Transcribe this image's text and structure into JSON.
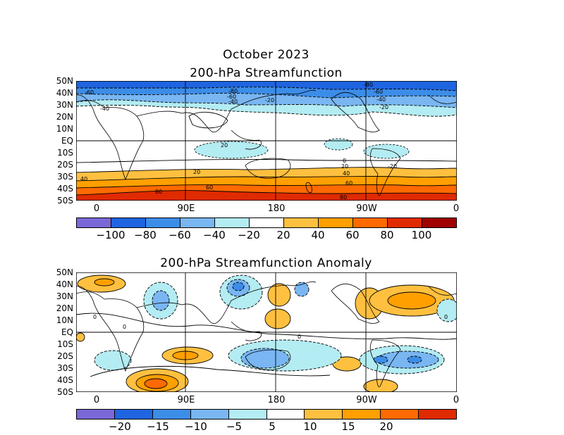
{
  "title": "October 2023",
  "panel1": {
    "title": "200-hPa Streamfunction",
    "lat_labels": [
      "50N",
      "40N",
      "30N",
      "20N",
      "10N",
      "EQ",
      "10S",
      "20S",
      "30S",
      "40S",
      "50S"
    ],
    "lon_labels": [
      "0",
      "90E",
      "180",
      "90W",
      "0"
    ],
    "contour_labels": [
      "-60",
      "-40",
      "-80",
      "-60",
      "-40",
      "-20",
      "-80",
      "-60",
      "-40",
      "-20",
      "20",
      "0",
      "20",
      "40",
      "60",
      "80",
      "40",
      "60",
      "80",
      "20",
      "-20"
    ],
    "colorbar": {
      "labels": [
        "-100",
        "-80",
        "-60",
        "-40",
        "-20",
        "20",
        "40",
        "60",
        "80",
        "100"
      ],
      "colors": [
        "#7b68d8",
        "#1f64e0",
        "#3c8de8",
        "#79b6f2",
        "#b3ecf2",
        "#ffffff",
        "#ffc040",
        "#ffa000",
        "#ff6a00",
        "#e02a00",
        "#a00000"
      ]
    }
  },
  "panel2": {
    "title": "200-hPa Streamfunction Anomaly",
    "lat_labels": [
      "50N",
      "40N",
      "30N",
      "20N",
      "10N",
      "EQ",
      "10S",
      "20S",
      "30S",
      "40S",
      "50S"
    ],
    "lon_labels": [
      "0",
      "90E",
      "180",
      "90W",
      "0"
    ],
    "contour_labels": [
      "0",
      "0",
      "0",
      "0"
    ],
    "colorbar": {
      "labels": [
        "-20",
        "-15",
        "-10",
        "-5",
        "5",
        "10",
        "15",
        "20"
      ],
      "colors": [
        "#7b68d8",
        "#1f64e0",
        "#3c8de8",
        "#79b6f2",
        "#b3ecf2",
        "#ffffff",
        "#ffc040",
        "#ffa000",
        "#ff6a00",
        "#e02a00"
      ]
    }
  }
}
